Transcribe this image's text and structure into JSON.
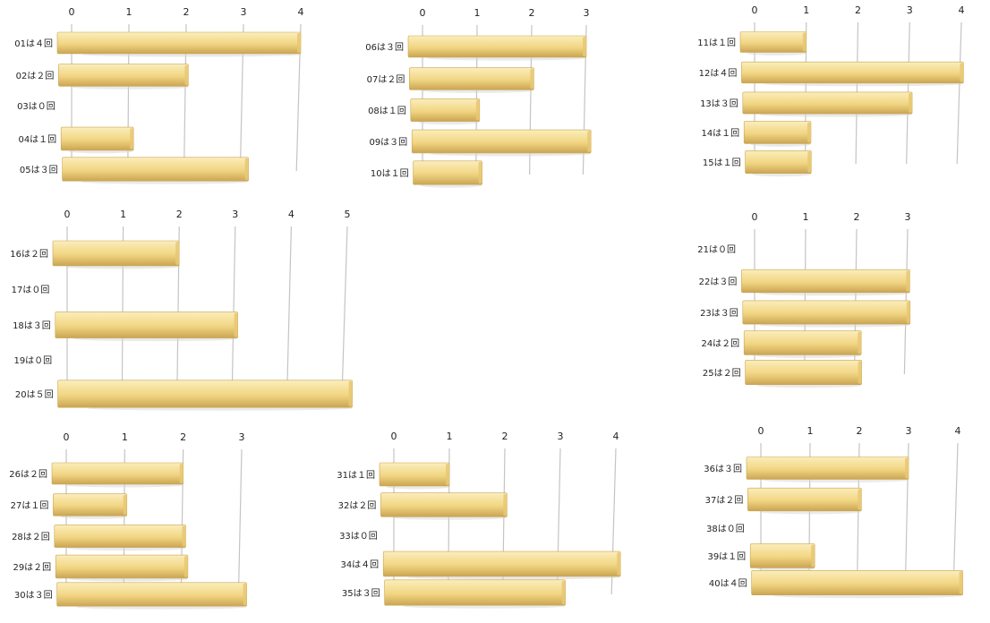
{
  "colors": {
    "bar_top": "#fbeebc",
    "bar_mid": "#f1d582",
    "bar_bottom": "#caa553",
    "bar_cap": "#e7c873",
    "grid": "#c4c4c4",
    "shadow": "#d6d6d6"
  },
  "chart_data": [
    {
      "type": "bar",
      "orientation": "horizontal",
      "categories": [
        "01は４回",
        "02は２回",
        "03は０回",
        "04は１回",
        "05は３回"
      ],
      "values": [
        4,
        2,
        0,
        1,
        3
      ],
      "ticks": [
        "0",
        "1",
        "2",
        "3",
        "4"
      ],
      "xlim": [
        0,
        4
      ]
    },
    {
      "type": "bar",
      "orientation": "horizontal",
      "categories": [
        "06は３回",
        "07は２回",
        "08は１回",
        "09は３回",
        "10は１回"
      ],
      "values": [
        3,
        2,
        1,
        3,
        1
      ],
      "ticks": [
        "0",
        "1",
        "2",
        "3"
      ],
      "xlim": [
        0,
        3
      ]
    },
    {
      "type": "bar",
      "orientation": "horizontal",
      "categories": [
        "11は１回",
        "12は４回",
        "13は３回",
        "14は１回",
        "15は１回"
      ],
      "values": [
        1,
        4,
        3,
        1,
        1
      ],
      "ticks": [
        "0",
        "1",
        "2",
        "3",
        "4"
      ],
      "xlim": [
        0,
        4
      ]
    },
    {
      "type": "bar",
      "orientation": "horizontal",
      "categories": [
        "16は２回",
        "17は０回",
        "18は３回",
        "19は０回",
        "20は５回"
      ],
      "values": [
        2,
        0,
        3,
        0,
        5
      ],
      "ticks": [
        "0",
        "1",
        "2",
        "3",
        "4",
        "5"
      ],
      "xlim": [
        0,
        5
      ]
    },
    {
      "type": "bar",
      "orientation": "horizontal",
      "categories": [
        "21は０回",
        "22は３回",
        "23は３回",
        "24は２回",
        "25は２回"
      ],
      "values": [
        0,
        3,
        3,
        2,
        2
      ],
      "ticks": [
        "0",
        "1",
        "2",
        "3"
      ],
      "xlim": [
        0,
        3
      ]
    },
    {
      "type": "bar",
      "orientation": "horizontal",
      "categories": [
        "26は２回",
        "27は１回",
        "28は２回",
        "29は２回",
        "30は３回"
      ],
      "values": [
        2,
        1,
        2,
        2,
        3
      ],
      "ticks": [
        "0",
        "1",
        "2",
        "3"
      ],
      "xlim": [
        0,
        3
      ]
    },
    {
      "type": "bar",
      "orientation": "horizontal",
      "categories": [
        "31は１回",
        "32は２回",
        "33は０回",
        "34は４回",
        "35は３回"
      ],
      "values": [
        1,
        2,
        0,
        4,
        3
      ],
      "ticks": [
        "0",
        "1",
        "2",
        "3",
        "4"
      ],
      "xlim": [
        0,
        4
      ]
    },
    {
      "type": "bar",
      "orientation": "horizontal",
      "categories": [
        "36は３回",
        "37は２回",
        "38は０回",
        "39は１回",
        "40は４回"
      ],
      "values": [
        3,
        2,
        0,
        1,
        4
      ],
      "ticks": [
        "0",
        "1",
        "2",
        "3",
        "4"
      ],
      "xlim": [
        0,
        4
      ]
    }
  ]
}
